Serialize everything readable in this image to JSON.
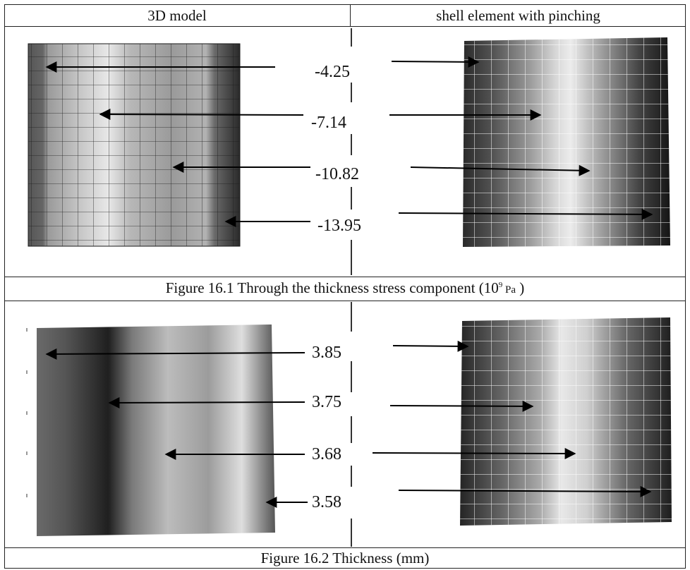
{
  "table": {
    "col_left_header": "3D model",
    "col_right_header": "shell element with pinching"
  },
  "figure1": {
    "caption_prefix": "Figure 16.1 Through the thickness stress component",
    "unit_open": "(",
    "unit_base": "10",
    "unit_exp": "9",
    "unit_pa": " Pa",
    "unit_close": " )",
    "values": [
      "-4.25",
      "-7.14",
      "-10.82",
      "-13.95"
    ]
  },
  "figure2": {
    "caption": "Figure 16.2 Thickness (mm)",
    "values": [
      "3.85",
      "3.75",
      "3.68",
      "3.58"
    ]
  }
}
